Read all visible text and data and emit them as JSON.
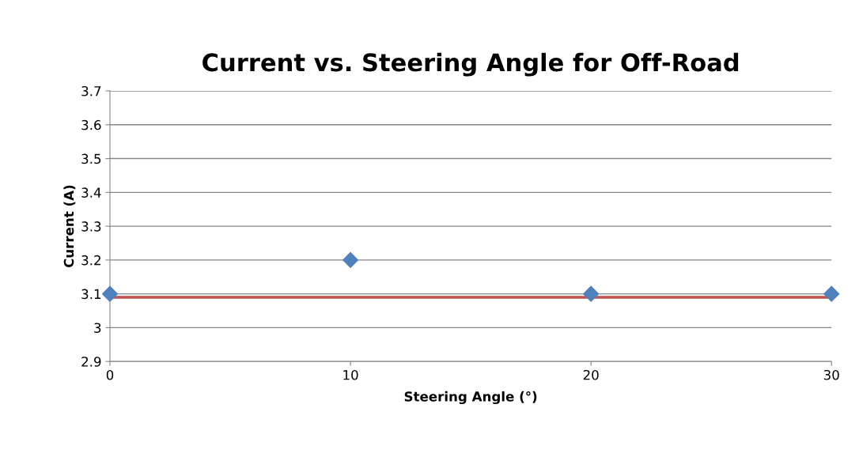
{
  "chart_data": {
    "type": "scatter",
    "title": "Current vs. Steering Angle for Off-Road",
    "xlabel": "Steering Angle (°)",
    "ylabel": "Current (A)",
    "x": [
      0,
      10,
      20,
      30
    ],
    "series": [
      {
        "color": "#4f81bd",
        "values": [
          3.1,
          3.2,
          3.1,
          3.1
        ]
      }
    ],
    "marker": "diamond",
    "xlim": [
      0,
      30
    ],
    "xticks": [
      0,
      10,
      20,
      30
    ],
    "ylim": [
      2.9,
      3.7
    ],
    "yticks": [
      2.9,
      3,
      3.1,
      3.2,
      3.3,
      3.4,
      3.5,
      3.6,
      3.7
    ],
    "ref_lines": [
      {
        "axis": "y",
        "value": 3.09,
        "color": "#c0504d",
        "line_style": "solid"
      }
    ],
    "grid": "y",
    "legend": false
  }
}
